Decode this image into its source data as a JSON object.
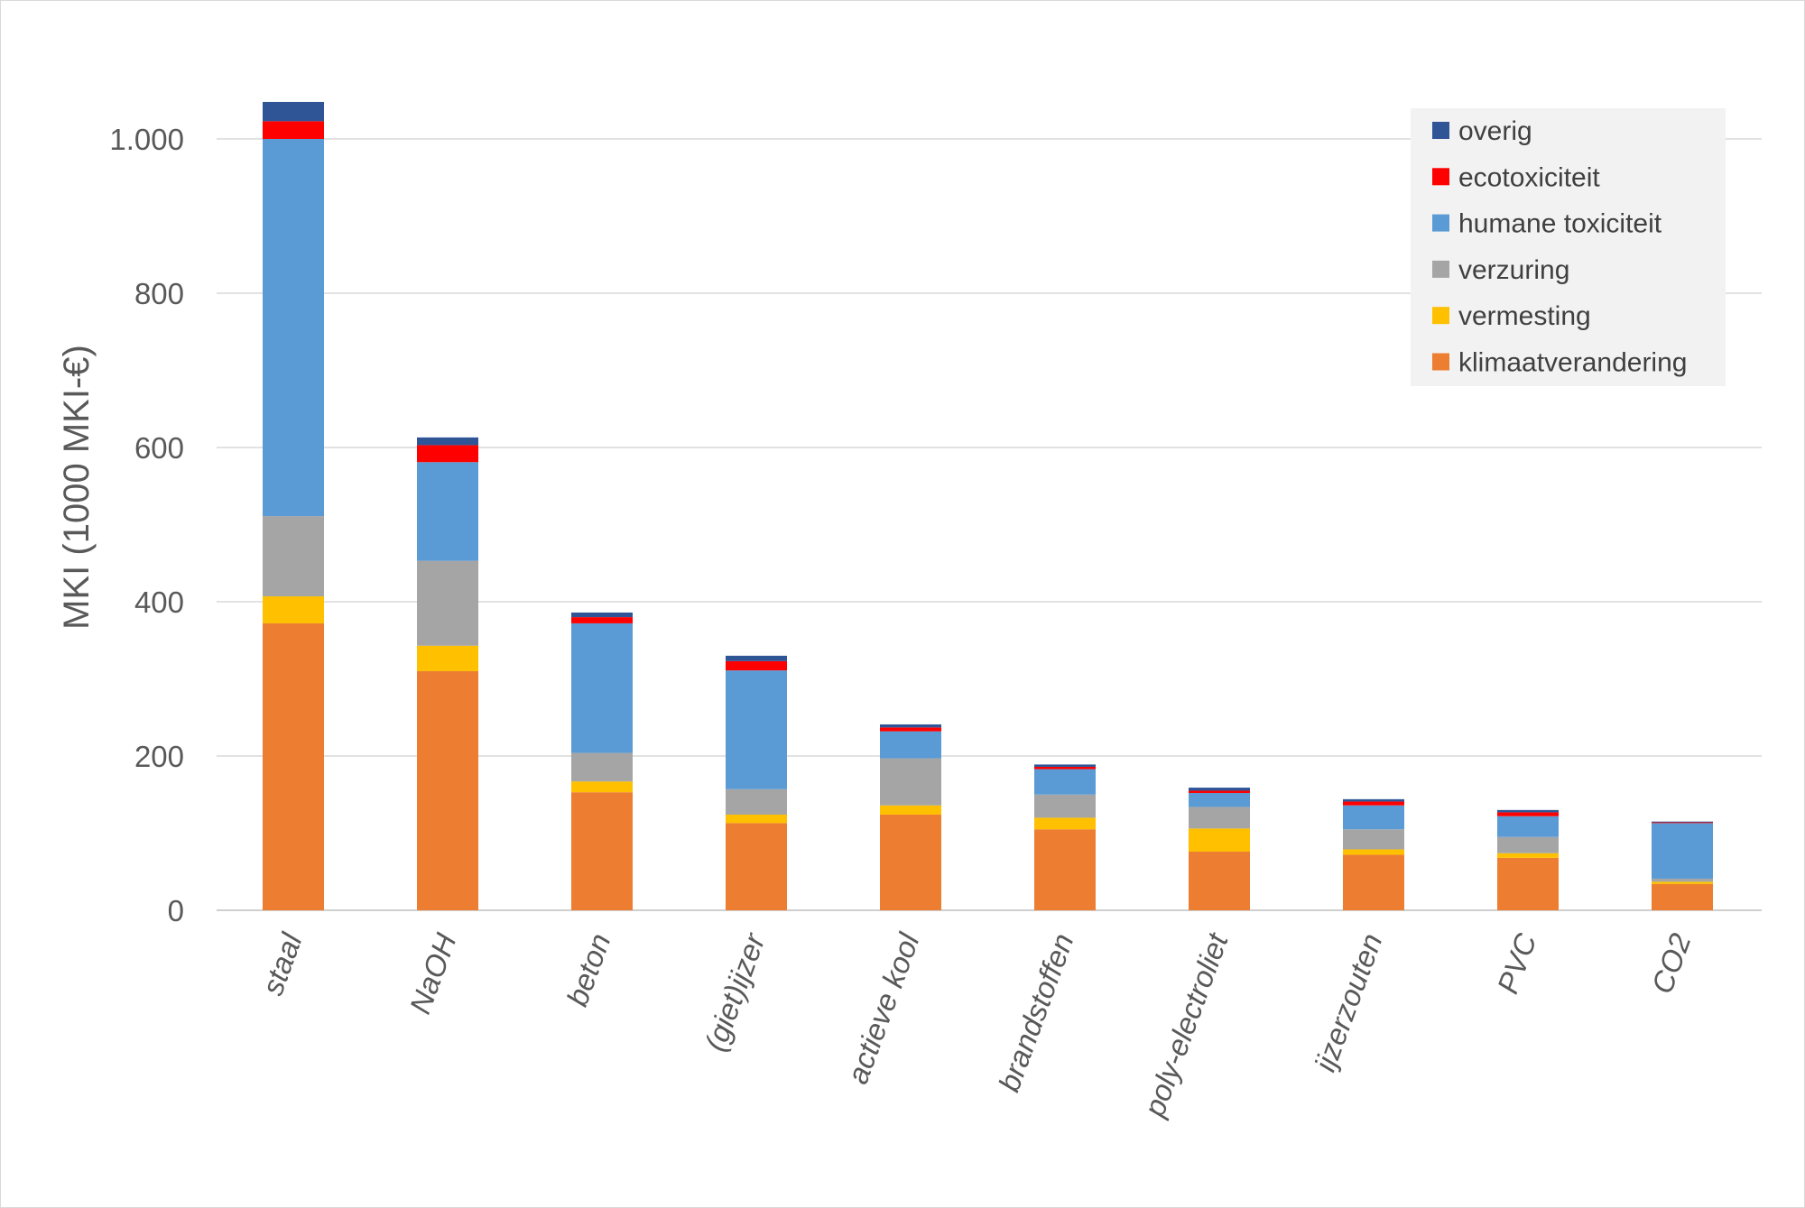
{
  "chart_data": {
    "type": "bar",
    "stacked": true,
    "title": "",
    "xlabel": "",
    "ylabel": "MKI (1000 MKI-€)",
    "ylim": [
      0,
      1050
    ],
    "yticks": [
      0,
      200,
      400,
      600,
      800,
      1000
    ],
    "ytick_labels": [
      "0",
      "200",
      "400",
      "600",
      "800",
      "1.000"
    ],
    "grid": true,
    "legend_position": "top-right",
    "categories": [
      "staal",
      "NaOH",
      "beton",
      "(giet)ijzer",
      "actieve kool",
      "brandstoffen",
      "poly-electroliet",
      "ijzerzouten",
      "PVC",
      "CO2"
    ],
    "series": [
      {
        "name": "klimaatverandering",
        "color": "#ED7D31",
        "values": [
          372,
          310,
          153,
          113,
          124,
          105,
          76,
          72,
          68,
          34
        ]
      },
      {
        "name": "vermesting",
        "color": "#FFC000",
        "values": [
          35,
          33,
          14,
          11,
          12,
          15,
          30,
          7,
          6,
          3
        ]
      },
      {
        "name": "verzuring",
        "color": "#A5A5A5",
        "values": [
          104,
          110,
          37,
          33,
          61,
          30,
          28,
          26,
          21,
          4
        ]
      },
      {
        "name": "humane toxiciteit",
        "color": "#5B9BD5",
        "values": [
          489,
          128,
          168,
          154,
          35,
          33,
          18,
          31,
          27,
          72
        ]
      },
      {
        "name": "ecotoxiciteit",
        "color": "#FF0000",
        "values": [
          23,
          22,
          8,
          12,
          5,
          3,
          3,
          5,
          5,
          1
        ]
      },
      {
        "name": "overig",
        "color": "#2F5597",
        "values": [
          25,
          10,
          6,
          7,
          4,
          3,
          4,
          3,
          3,
          1
        ]
      }
    ]
  }
}
